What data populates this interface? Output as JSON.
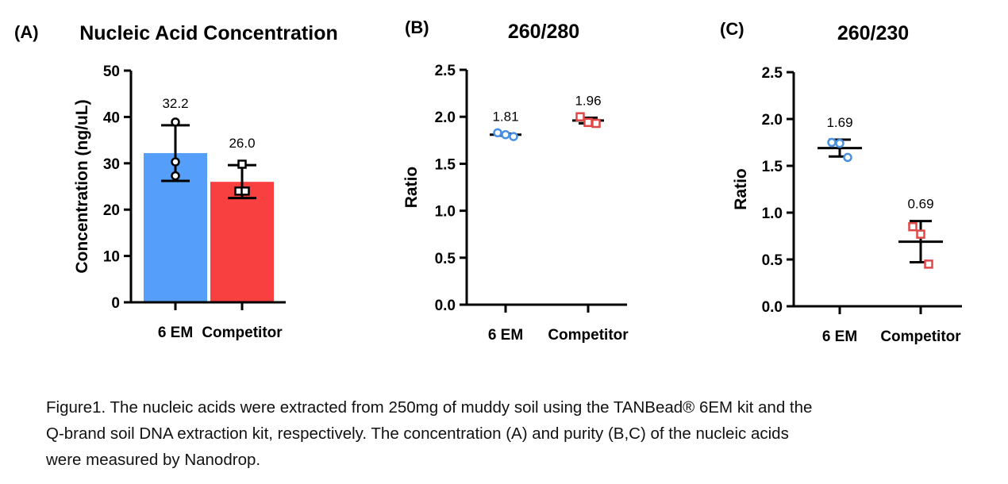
{
  "chart_data": [
    {
      "type": "bar",
      "panel_label": "(A)",
      "title": "Nucleic Acid Concentration",
      "xlabel": "",
      "ylabel": "Concentration (ng/uL)",
      "ylim": [
        0,
        50
      ],
      "yticks": [
        "0",
        "10",
        "20",
        "30",
        "40",
        "50"
      ],
      "categories": [
        "6 EM",
        "Competitor"
      ],
      "values": [
        32.2,
        26.0
      ],
      "data_labels": [
        "32.2",
        "26.0"
      ],
      "error_low": [
        26.2,
        22.5
      ],
      "error_high": [
        38.2,
        29.6
      ],
      "points": [
        [
          38.9,
          30.3,
          27.3
        ],
        [
          29.8,
          24.0,
          24.0
        ]
      ],
      "markers": [
        "circle",
        "square"
      ],
      "colors": [
        "#559ffa",
        "#f84040"
      ],
      "grid": false
    },
    {
      "type": "scatter",
      "panel_label": "(B)",
      "title": "260/280",
      "xlabel": "",
      "ylabel": "Ratio",
      "ylim": [
        0,
        2.5
      ],
      "yticks": [
        "0.0",
        "0.5",
        "1.0",
        "1.5",
        "2.0",
        "2.5"
      ],
      "categories": [
        "6 EM",
        "Competitor"
      ],
      "values": [
        1.81,
        1.96
      ],
      "data_labels": [
        "1.81",
        "1.96"
      ],
      "error_low": [
        1.8,
        1.93
      ],
      "error_high": [
        1.82,
        1.99
      ],
      "points": [
        [
          1.83,
          1.81,
          1.79
        ],
        [
          2.0,
          1.94,
          1.93
        ]
      ],
      "markers": [
        "circle",
        "square"
      ],
      "colors": [
        "#4a90e2",
        "#e04848"
      ],
      "grid": false
    },
    {
      "type": "scatter",
      "panel_label": "(C)",
      "title": "260/230",
      "xlabel": "",
      "ylabel": "Ratio",
      "ylim": [
        0,
        2.5
      ],
      "yticks": [
        "0.0",
        "0.5",
        "1.0",
        "1.5",
        "2.0",
        "2.5"
      ],
      "categories": [
        "6 EM",
        "Competitor"
      ],
      "values": [
        1.69,
        0.69
      ],
      "data_labels": [
        "1.69",
        "0.69"
      ],
      "error_low": [
        1.6,
        0.47
      ],
      "error_high": [
        1.78,
        0.91
      ],
      "points": [
        [
          1.75,
          1.74,
          1.59
        ],
        [
          0.85,
          0.77,
          0.45
        ]
      ],
      "markers": [
        "circle",
        "square"
      ],
      "colors": [
        "#4a90e2",
        "#e04848"
      ],
      "grid": false
    }
  ],
  "caption": [
    "Figure1. The nucleic acids were extracted from 250mg of muddy soil using the TANBead® 6EM kit and the",
    "Q-brand soil DNA extraction kit, respectively. The concentration (A) and purity (B,C) of the nucleic acids",
    "were measured by Nanodrop."
  ]
}
